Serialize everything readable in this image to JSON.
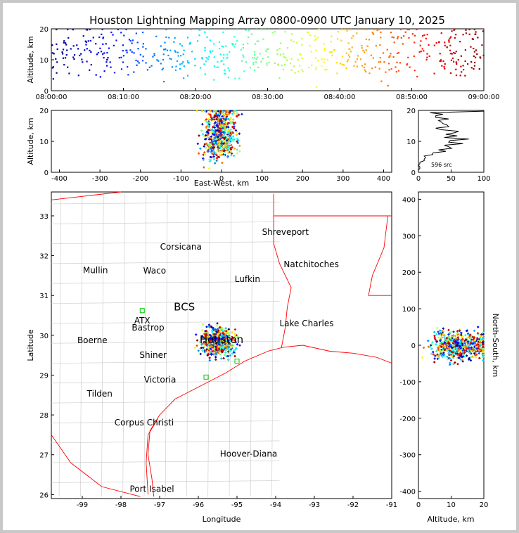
{
  "chart_data": [
    {
      "type": "scatter",
      "panel": "time-altitude",
      "title": "Houston Lightning Mapping Array 0800-0900 UTC January 10, 2025",
      "xlabel": "",
      "ylabel": "Altitude, km",
      "xlim": [
        "08:00:00",
        "09:00:00"
      ],
      "ylim": [
        0,
        20
      ],
      "xticks": [
        "08:00:00",
        "08:10:00",
        "08:20:00",
        "08:30:00",
        "08:40:00",
        "08:50:00",
        "09:00:00"
      ],
      "yticks": [
        0,
        10,
        20
      ],
      "color_encoding": "time (blue → red)",
      "grid": false
    },
    {
      "type": "scatter",
      "panel": "eastwest-altitude",
      "xlabel": "East-West, km",
      "ylabel": "Altitude, km",
      "xlim": [
        -420,
        420
      ],
      "ylim": [
        0,
        20
      ],
      "xticks": [
        -400,
        -300,
        -200,
        -100,
        0,
        100,
        200,
        300,
        400
      ],
      "yticks": [
        0,
        10,
        20
      ],
      "grid": false
    },
    {
      "type": "line",
      "panel": "altitude-histogram",
      "annotation": "596 src",
      "xlim": [
        0,
        100
      ],
      "ylim": [
        0,
        20
      ],
      "xticks": [
        0,
        50,
        100
      ],
      "yticks": [
        0,
        10,
        20
      ],
      "grid": false
    },
    {
      "type": "scatter",
      "panel": "plan-view-map",
      "xlabel": "Longitude",
      "ylabel": "Latitude",
      "xlim": [
        -99.8,
        -91.0
      ],
      "ylim": [
        25.9,
        33.6
      ],
      "xticks": [
        -99,
        -98,
        -97,
        -96,
        -95,
        -94,
        -93,
        -92,
        -91
      ],
      "yticks": [
        26,
        27,
        28,
        29,
        30,
        31,
        32,
        33
      ],
      "cities": [
        {
          "name": "Shreveport",
          "lon": -93.75,
          "lat": 32.52,
          "color": "#000000"
        },
        {
          "name": "Corsicana",
          "lon": -96.45,
          "lat": 32.15,
          "color": "#000000"
        },
        {
          "name": "Natchitoches",
          "lon": -93.08,
          "lat": 31.71,
          "color": "#000000"
        },
        {
          "name": "Mullin",
          "lon": -98.66,
          "lat": 31.56,
          "color": "#f4a460"
        },
        {
          "name": "Waco",
          "lon": -97.13,
          "lat": 31.55,
          "color": "#000000"
        },
        {
          "name": "Lufkin",
          "lon": -94.73,
          "lat": 31.34,
          "color": "#000000"
        },
        {
          "name": "BCS",
          "lon": -96.36,
          "lat": 30.62,
          "color": "#000000"
        },
        {
          "name": "ATX",
          "lon": -97.45,
          "lat": 30.3,
          "color": "#f4a460"
        },
        {
          "name": "Lake Charles",
          "lon": -93.2,
          "lat": 30.23,
          "color": "#000000"
        },
        {
          "name": "Bastrop",
          "lon": -97.3,
          "lat": 30.12,
          "color": "#000000"
        },
        {
          "name": "Boerne",
          "lon": -98.74,
          "lat": 29.8,
          "color": "#000000"
        },
        {
          "name": "Houston",
          "lon": -95.4,
          "lat": 29.8,
          "color": "#ff8c00"
        },
        {
          "name": "Shiner",
          "lon": -97.17,
          "lat": 29.43,
          "color": "#000000"
        },
        {
          "name": "Victoria",
          "lon": -96.99,
          "lat": 28.81,
          "color": "#000000"
        },
        {
          "name": "Tilden",
          "lon": -98.55,
          "lat": 28.46,
          "color": "#000000"
        },
        {
          "name": "Corpus Christi",
          "lon": -97.4,
          "lat": 27.74,
          "color": "#000000"
        },
        {
          "name": "Hoover-Diana",
          "lon": -94.7,
          "lat": 26.95,
          "color": "#0000ff"
        },
        {
          "name": "Port Isabel",
          "lon": -97.2,
          "lat": 26.07,
          "color": "#000000"
        }
      ],
      "grid": false
    },
    {
      "type": "scatter",
      "panel": "altitude-northsouth",
      "xlabel": "Altitude, km",
      "ylabel": "North-South, km",
      "xlim": [
        0,
        20
      ],
      "ylim": [
        -420,
        420
      ],
      "xticks": [
        0,
        10,
        20
      ],
      "yticks": [
        -400,
        -300,
        -200,
        -100,
        0,
        100,
        200,
        300,
        400
      ],
      "grid": false
    }
  ],
  "colors": {
    "frame": "#c8c8c8",
    "state_border": "#ff0000",
    "county_border": "#b0b0b0",
    "station_marker": "#00cc00"
  }
}
